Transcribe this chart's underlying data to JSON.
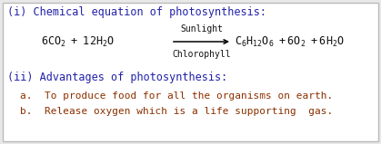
{
  "bg_color": "#e8e8e8",
  "inner_bg": "#ffffff",
  "border_color": "#bbbbbb",
  "title_color": "#2222aa",
  "equation_color": "#111111",
  "body_text_color": "#8b3000",
  "line1": "(i) Chemical equation of photosynthesis:",
  "arrow_top": "Sunlight",
  "arrow_bot": "Chlorophyll",
  "line_adv": "(ii) Advantages of photosynthesis:",
  "bullet_a": "a.  To produce food for all the organisms on earth.",
  "bullet_b": "b.  Release oxygen which is a life supporting  gas.",
  "font_family": "monospace",
  "fs_title": 8.5,
  "fs_eq": 8.5,
  "fs_arrow": 7.0,
  "fs_body": 8.0
}
